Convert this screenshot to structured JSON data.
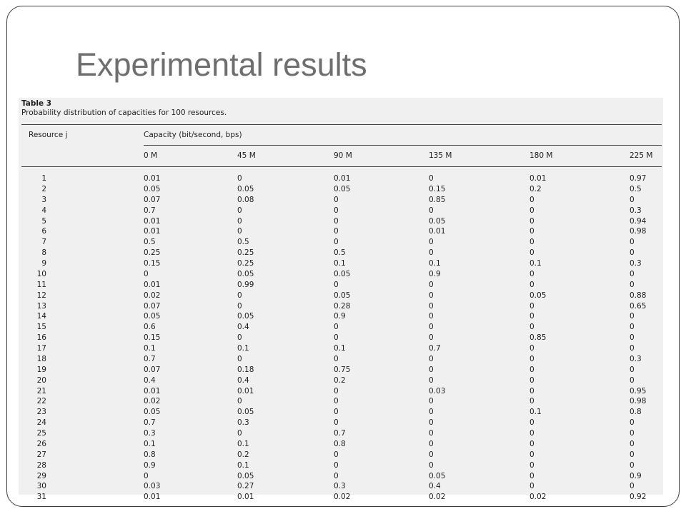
{
  "slide": {
    "title": "Experimental results"
  },
  "table": {
    "label": "Table 3",
    "caption": "Probability distribution of capacities for 100 resources.",
    "resource_header": "Resource j",
    "capacity_header": "Capacity (bit/second, bps)",
    "capacity_columns": [
      "0 M",
      "45 M",
      "90 M",
      "135 M",
      "180 M",
      "225 M"
    ],
    "rows": [
      [
        "1",
        "0.01",
        "0",
        "0.01",
        "0",
        "0.01",
        "0.97"
      ],
      [
        "2",
        "0.05",
        "0.05",
        "0.05",
        "0.15",
        "0.2",
        "0.5"
      ],
      [
        "3",
        "0.07",
        "0.08",
        "0",
        "0.85",
        "0",
        "0"
      ],
      [
        "4",
        "0.7",
        "0",
        "0",
        "0",
        "0",
        "0.3"
      ],
      [
        "5",
        "0.01",
        "0",
        "0",
        "0.05",
        "0",
        "0.94"
      ],
      [
        "6",
        "0.01",
        "0",
        "0",
        "0.01",
        "0",
        "0.98"
      ],
      [
        "7",
        "0.5",
        "0.5",
        "0",
        "0",
        "0",
        "0"
      ],
      [
        "8",
        "0.25",
        "0.25",
        "0.5",
        "0",
        "0",
        "0"
      ],
      [
        "9",
        "0.15",
        "0.25",
        "0.1",
        "0.1",
        "0.1",
        "0.3"
      ],
      [
        "10",
        "0",
        "0.05",
        "0.05",
        "0.9",
        "0",
        "0"
      ],
      [
        "11",
        "0.01",
        "0.99",
        "0",
        "0",
        "0",
        "0"
      ],
      [
        "12",
        "0.02",
        "0",
        "0.05",
        "0",
        "0.05",
        "0.88"
      ],
      [
        "13",
        "0.07",
        "0",
        "0.28",
        "0",
        "0",
        "0.65"
      ],
      [
        "14",
        "0.05",
        "0.05",
        "0.9",
        "0",
        "0",
        "0"
      ],
      [
        "15",
        "0.6",
        "0.4",
        "0",
        "0",
        "0",
        "0"
      ],
      [
        "16",
        "0.15",
        "0",
        "0",
        "0",
        "0.85",
        "0"
      ],
      [
        "17",
        "0.1",
        "0.1",
        "0.1",
        "0.7",
        "0",
        "0"
      ],
      [
        "18",
        "0.7",
        "0",
        "0",
        "0",
        "0",
        "0.3"
      ],
      [
        "19",
        "0.07",
        "0.18",
        "0.75",
        "0",
        "0",
        "0"
      ],
      [
        "20",
        "0.4",
        "0.4",
        "0.2",
        "0",
        "0",
        "0"
      ],
      [
        "21",
        "0.01",
        "0.01",
        "0",
        "0.03",
        "0",
        "0.95"
      ],
      [
        "22",
        "0.02",
        "0",
        "0",
        "0",
        "0",
        "0.98"
      ],
      [
        "23",
        "0.05",
        "0.05",
        "0",
        "0",
        "0.1",
        "0.8"
      ],
      [
        "24",
        "0.7",
        "0.3",
        "0",
        "0",
        "0",
        "0"
      ],
      [
        "25",
        "0.3",
        "0",
        "0.7",
        "0",
        "0",
        "0"
      ],
      [
        "26",
        "0.1",
        "0.1",
        "0.8",
        "0",
        "0",
        "0"
      ],
      [
        "27",
        "0.8",
        "0.2",
        "0",
        "0",
        "0",
        "0"
      ],
      [
        "28",
        "0.9",
        "0.1",
        "0",
        "0",
        "0",
        "0"
      ],
      [
        "29",
        "0",
        "0.05",
        "0",
        "0.05",
        "0",
        "0.9"
      ],
      [
        "30",
        "0.03",
        "0.27",
        "0.3",
        "0.4",
        "0",
        "0"
      ],
      [
        "31",
        "0.01",
        "0.01",
        "0.02",
        "0.02",
        "0.02",
        "0.92"
      ]
    ]
  }
}
